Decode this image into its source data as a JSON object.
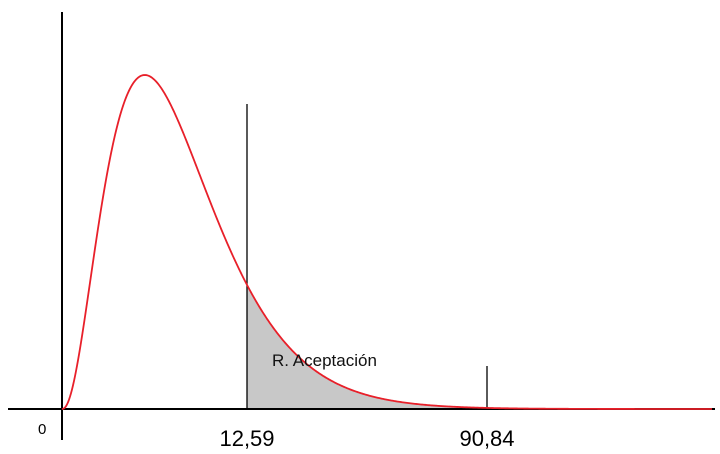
{
  "chart_data": {
    "type": "area",
    "curve": "chi-square-like density (right-skewed)",
    "x_ticks": [
      {
        "value": 0,
        "label": "0"
      },
      {
        "value": 12.59,
        "label": "12,59"
      },
      {
        "value": 90.84,
        "label": "90,84"
      }
    ],
    "shaded_region": {
      "from": 12.59,
      "to": "end",
      "label": "R. Aceptación"
    },
    "marker_line": {
      "value": 90.84
    },
    "colors": {
      "curve": "#e8202a",
      "shade": "#c8c8c8",
      "axes": "#000000"
    },
    "grid": false,
    "legend": "none"
  }
}
